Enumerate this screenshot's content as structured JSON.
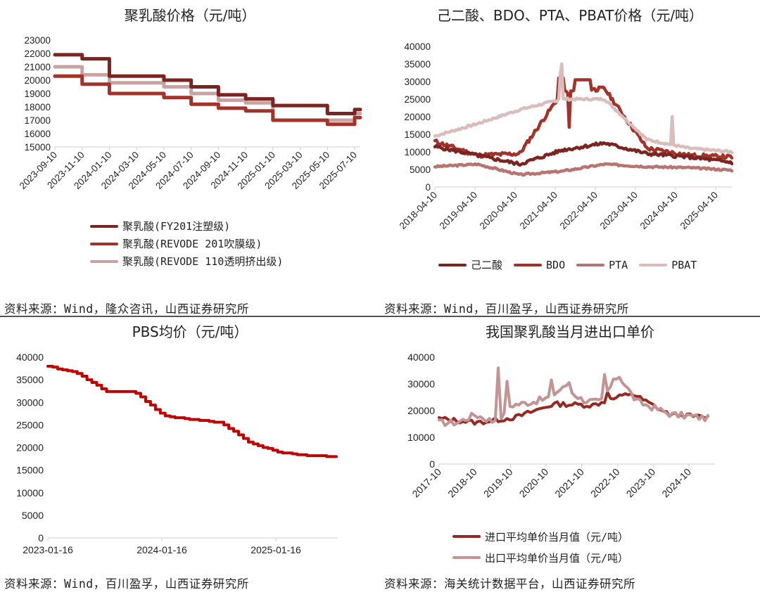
{
  "panels": {
    "pla_price": {
      "title": "聚乳酸价格（元/吨）",
      "source": "资料来源：Wind，隆众咨讯，山西证券研究所",
      "legend": [
        "聚乳酸(FY201注塑级)",
        "聚乳酸(REVODE 201吹膜级)",
        "聚乳酸(REVODE 110透明挤出级)"
      ]
    },
    "raw_price": {
      "title": "己二酸、BDO、PTA、PBAT价格（元/吨）",
      "source": "资料来源：Wind，百川盈孚，山西证券研究所",
      "legend": [
        "己二酸",
        "BDO",
        "PTA",
        "PBAT"
      ]
    },
    "pbs_price": {
      "title": "PBS均价（元/吨）",
      "source": "资料来源：Wind，百川盈孚，山西证券研究所"
    },
    "trade_price": {
      "title": "我国聚乳酸当月进出口单价",
      "source": "资料来源：海关统计数据平台，山西证券研究所",
      "legend": [
        "进口平均单价当月值（元/吨）",
        "出口平均单价当月值（元/吨）"
      ]
    }
  },
  "colors": {
    "dark_maroon": "#7B2420",
    "red_brown": "#A3332A",
    "pink": "#C9A3A3",
    "pta": "#B77470",
    "pbs_red": "#C00000",
    "import": "#952A22",
    "export": "#C49393"
  },
  "chart_data": [
    {
      "type": "line",
      "title": "聚乳酸价格（元/吨）",
      "xlabel": "",
      "ylabel": "元/吨",
      "ylim": [
        15000,
        23000
      ],
      "yticks": [
        15000,
        16000,
        17000,
        18000,
        19000,
        20000,
        21000,
        22000,
        23000
      ],
      "categories": [
        "2023-09-10",
        "2023-11-10",
        "2024-01-10",
        "2024-03-10",
        "2024-05-10",
        "2024-07-10",
        "2024-09-10",
        "2024-11-10",
        "2025-01-10",
        "2025-03-10",
        "2025-05-10",
        "2025-07-10"
      ],
      "series": [
        {
          "name": "聚乳酸(FY201注塑级)",
          "values": [
            21900,
            21600,
            20300,
            20300,
            20000,
            19500,
            18900,
            18600,
            18100,
            18100,
            17500,
            17800
          ]
        },
        {
          "name": "聚乳酸(REVODE 201吹膜级)",
          "values": [
            20300,
            19700,
            19000,
            19000,
            18700,
            18200,
            17900,
            17700,
            17000,
            17000,
            16700,
            17200
          ]
        },
        {
          "name": "聚乳酸(REVODE 110透明挤出级)",
          "values": [
            21000,
            20400,
            19800,
            19800,
            19500,
            19000,
            18500,
            18300,
            17000,
            17000,
            17000,
            17500
          ]
        }
      ],
      "legend_position": "bottom",
      "grid": false
    },
    {
      "type": "line",
      "title": "己二酸、BDO、PTA、PBAT价格（元/吨）",
      "xlabel": "",
      "ylabel": "元/吨",
      "ylim": [
        0,
        40000
      ],
      "yticks": [
        0,
        5000,
        10000,
        15000,
        20000,
        25000,
        30000,
        35000,
        40000
      ],
      "categories": [
        "2018-04-10",
        "2019-04-10",
        "2020-04-10",
        "2021-04-10",
        "2022-04-10",
        "2023-04-10",
        "2024-04-10",
        "2025-04-10"
      ],
      "series": [
        {
          "name": "己二酸",
          "values": [
            11500,
            9000,
            6500,
            10500,
            12500,
            9500,
            8500,
            7000
          ]
        },
        {
          "name": "BDO",
          "values": [
            13000,
            9000,
            9500,
            27000,
            28000,
            11000,
            9000,
            8500
          ]
        },
        {
          "name": "PTA",
          "values": [
            5800,
            6500,
            3500,
            4500,
            6500,
            5800,
            5500,
            4800
          ]
        },
        {
          "name": "PBAT",
          "values": [
            14500,
            18000,
            22000,
            25000,
            25000,
            13500,
            11000,
            10000
          ]
        }
      ],
      "annotations": [
        {
          "series": "PBAT",
          "peak": 35000,
          "at": "2021-03"
        },
        {
          "series": "BDO",
          "peak": 31000,
          "at": "2021-09"
        }
      ],
      "legend_position": "bottom",
      "grid": false
    },
    {
      "type": "line",
      "title": "PBS均价（元/吨）",
      "xlabel": "",
      "ylabel": "元/吨",
      "ylim": [
        0,
        40000
      ],
      "yticks": [
        0,
        5000,
        10000,
        15000,
        20000,
        25000,
        30000,
        35000,
        40000
      ],
      "x": [
        "2023-01-16",
        "2023-04",
        "2023-07",
        "2023-10",
        "2024-01-16",
        "2024-04",
        "2024-07",
        "2024-10",
        "2025-01-16",
        "2025-04",
        "2025-07"
      ],
      "series": [
        {
          "name": "PBS均价",
          "values": [
            38000,
            36500,
            32500,
            32300,
            27000,
            26200,
            25500,
            21000,
            19000,
            18200,
            18000
          ]
        }
      ],
      "legend_position": "none",
      "grid": false
    },
    {
      "type": "line",
      "title": "我国聚乳酸当月进出口单价",
      "xlabel": "",
      "ylabel": "元/吨",
      "ylim": [
        0,
        40000
      ],
      "yticks": [
        0,
        10000,
        20000,
        30000,
        40000
      ],
      "categories": [
        "2017-10",
        "2018-10",
        "2019-10",
        "2020-10",
        "2021-10",
        "2022-10",
        "2023-10",
        "2024-10"
      ],
      "series": [
        {
          "name": "进口平均单价当月值（元/吨）",
          "values": [
            17000,
            15500,
            17500,
            22500,
            22000,
            26500,
            18500,
            17500
          ]
        },
        {
          "name": "出口平均单价当月值（元/吨）",
          "values": [
            15500,
            16000,
            36000,
            31000,
            28000,
            33500,
            19000,
            17000
          ]
        }
      ],
      "legend_position": "bottom",
      "grid": false
    }
  ]
}
